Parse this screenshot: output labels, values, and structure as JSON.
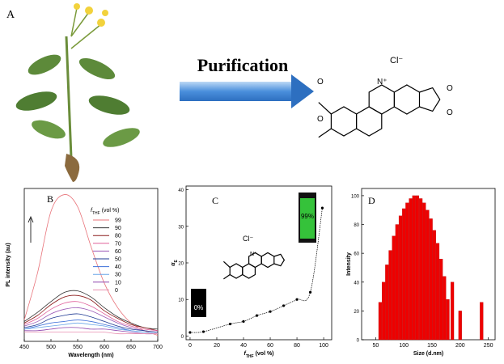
{
  "panel_a": {
    "label": "A",
    "arrow_label": "Purification",
    "counterion": "Cl⁻",
    "cation": "N⁺",
    "atoms": [
      "O",
      "O",
      "O",
      "O"
    ]
  },
  "chart_data": [
    {
      "type": "line",
      "panel_label": "B",
      "xlabel": "Wavelength (nm)",
      "ylabel": "PL intensity (au)",
      "legend_title": {
        "symbol": "f",
        "subscript": "THF",
        "unit": "(vol %)"
      },
      "x": [
        450,
        475,
        500,
        525,
        550,
        575,
        600,
        625,
        650,
        675,
        700
      ],
      "xlim": [
        450,
        700
      ],
      "xticks": [
        450,
        500,
        550,
        600,
        650,
        700
      ],
      "ylim": [
        0,
        100
      ],
      "series": [
        {
          "name": "99",
          "color": "#e8737a",
          "values": [
            14,
            45,
            85,
            96,
            88,
            62,
            38,
            22,
            12,
            7,
            4
          ]
        },
        {
          "name": "90",
          "color": "#333333",
          "values": [
            13,
            19,
            26,
            32,
            33,
            29,
            22,
            16,
            12,
            9,
            8
          ]
        },
        {
          "name": "80",
          "color": "#8b1a1a",
          "values": [
            12,
            17,
            24,
            29,
            30,
            27,
            20,
            15,
            11,
            9,
            7
          ]
        },
        {
          "name": "70",
          "color": "#e0609a",
          "values": [
            11,
            15,
            21,
            25,
            26,
            23,
            18,
            13,
            10,
            8,
            7
          ]
        },
        {
          "name": "60",
          "color": "#9b59b6",
          "values": [
            10,
            13,
            18,
            21,
            22,
            20,
            16,
            12,
            9,
            7,
            6
          ]
        },
        {
          "name": "50",
          "color": "#1f3a93",
          "values": [
            9,
            11,
            15,
            17,
            18,
            16,
            13,
            10,
            8,
            7,
            6
          ]
        },
        {
          "name": "40",
          "color": "#3b6fd9",
          "values": [
            8,
            10,
            12,
            13,
            14,
            13,
            11,
            9,
            7,
            6,
            5
          ]
        },
        {
          "name": "30",
          "color": "#6aa6e8",
          "values": [
            8,
            9,
            10,
            11,
            12,
            11,
            10,
            8,
            7,
            6,
            5
          ]
        },
        {
          "name": "10",
          "color": "#8e44ad",
          "values": [
            7,
            7,
            8,
            9,
            9,
            8,
            8,
            7,
            6,
            5,
            5
          ]
        },
        {
          "name": "0",
          "color": "#e88fb0",
          "values": [
            6,
            6,
            6,
            6,
            6,
            6,
            6,
            5,
            5,
            5,
            5
          ]
        }
      ]
    },
    {
      "type": "scatter",
      "panel_label": "C",
      "xlabel": {
        "symbol": "f",
        "subscript": "THF",
        "unit": "(vol %)"
      },
      "ylabel": {
        "symbol": "α",
        "subscript": "E"
      },
      "x": [
        0,
        10,
        30,
        40,
        50,
        60,
        70,
        80,
        90,
        99
      ],
      "values": [
        1,
        1.2,
        3.3,
        4,
        5.6,
        6.7,
        8.3,
        10,
        12,
        35
      ],
      "color": "#000000",
      "xlim": [
        -3,
        106
      ],
      "xticks": [
        0,
        20,
        40,
        60,
        80,
        100
      ],
      "ylim": [
        -1,
        41
      ],
      "yticks": [
        0,
        10,
        20,
        30,
        40
      ],
      "annotations": {
        "left": "0%",
        "right": "99%",
        "counterion": "Cl⁻",
        "cation": "N⁺"
      }
    },
    {
      "type": "bar",
      "panel_label": "D",
      "xlabel": "Size (d.nm)",
      "ylabel": "Intensity",
      "color": "#ee0000",
      "x": [
        58,
        64,
        70,
        76,
        82,
        88,
        94,
        100,
        106,
        112,
        118,
        124,
        130,
        136,
        142,
        148,
        154,
        160,
        166,
        172,
        178,
        186,
        200,
        238
      ],
      "values": [
        26,
        40,
        52,
        62,
        72,
        80,
        86,
        91,
        95,
        98,
        100,
        100,
        98,
        95,
        90,
        84,
        76,
        67,
        56,
        44,
        28,
        40,
        20,
        26
      ],
      "xlim": [
        25,
        262
      ],
      "xticks": [
        50,
        100,
        150,
        200,
        250
      ],
      "ylim": [
        0,
        105
      ],
      "yticks": [
        0,
        20,
        40,
        60,
        80,
        100
      ]
    }
  ]
}
